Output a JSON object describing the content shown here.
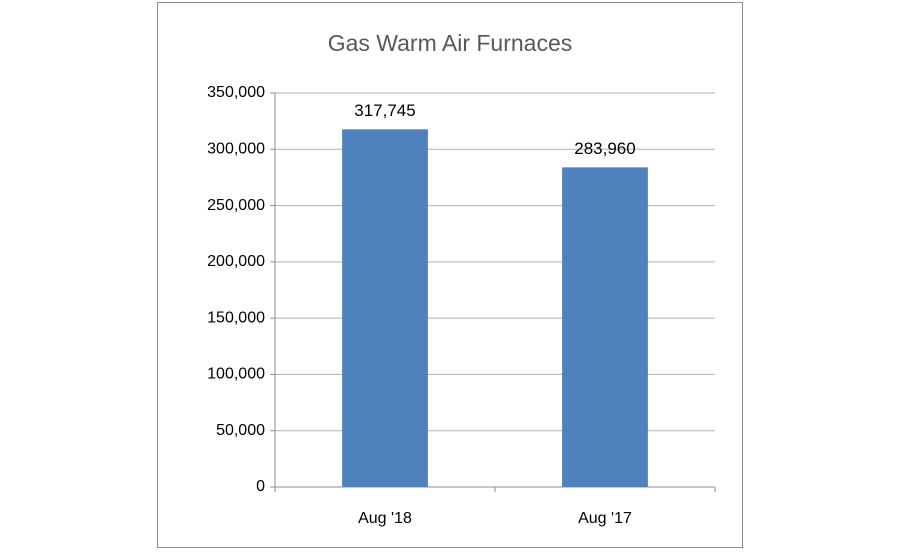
{
  "chart_data": {
    "type": "bar",
    "title": "Gas Warm Air Furnaces",
    "categories": [
      "Aug '18",
      "Aug '17"
    ],
    "values": [
      317745,
      283960
    ],
    "value_labels": [
      "317,745",
      "283,960"
    ],
    "color": "#4f81bd",
    "ylim": [
      0,
      350000
    ],
    "yticks": [
      0,
      {
        "value": 50000,
        "label": "50,000"
      },
      {
        "value": 100000,
        "label": "100,000"
      },
      {
        "value": 150000,
        "label": "150,000"
      },
      {
        "value": 200000,
        "label": "200,000"
      },
      {
        "value": 250000,
        "label": "250,000"
      },
      {
        "value": 300000,
        "label": "300,000"
      },
      {
        "value": 350000,
        "label": "350,000"
      }
    ],
    "grid": true
  }
}
